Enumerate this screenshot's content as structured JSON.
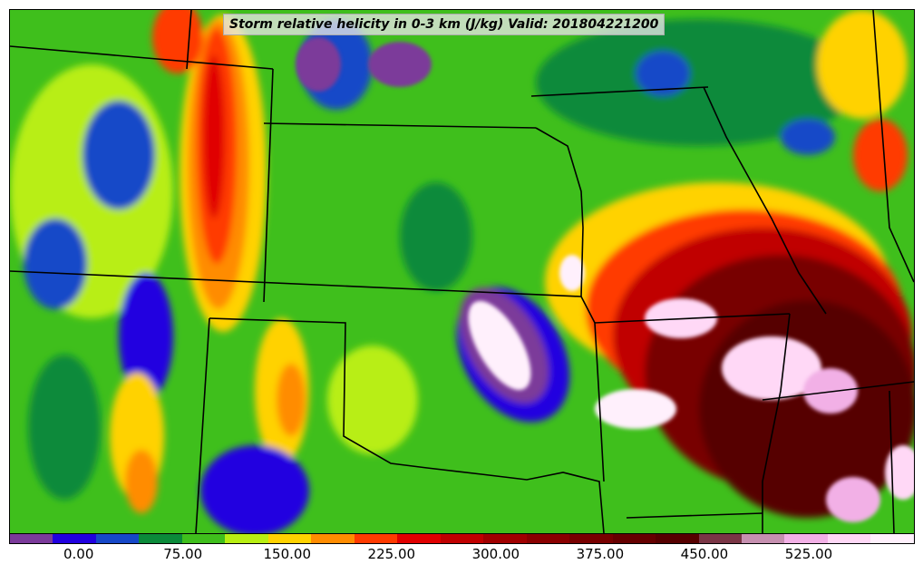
{
  "map": {
    "title": "Storm relative helicity in 0-3 km (J/kg) Valid: 201804221200",
    "field": "storm relative helicity 0-3 km",
    "units": "J/kg",
    "valid_time": "201804221200",
    "projection_region": "central United States (Kansas, Oklahoma, Missouri, Arkansas, Nebraska, Colorado)",
    "background_color": "#3fbf1c",
    "boundary_color": "#000000"
  },
  "colorbar": {
    "colors": [
      "#7b3a9a",
      "#2000e0",
      "#1648c8",
      "#0b8a3a",
      "#3fbf1c",
      "#b8ee12",
      "#ffd200",
      "#ff8c00",
      "#ff3a00",
      "#e00000",
      "#c00000",
      "#a00000",
      "#8a0000",
      "#780000",
      "#660000",
      "#560000",
      "#7a3646",
      "#c690b0",
      "#f2b0e6",
      "#ffd8f6",
      "#fff0fc"
    ],
    "labels": [
      "0.00",
      "75.00",
      "150.00",
      "225.00",
      "300.00",
      "375.00",
      "450.00",
      "525.00"
    ],
    "label_values": [
      0,
      75,
      150,
      225,
      300,
      375,
      450,
      525
    ],
    "min": -50,
    "max": 600
  }
}
